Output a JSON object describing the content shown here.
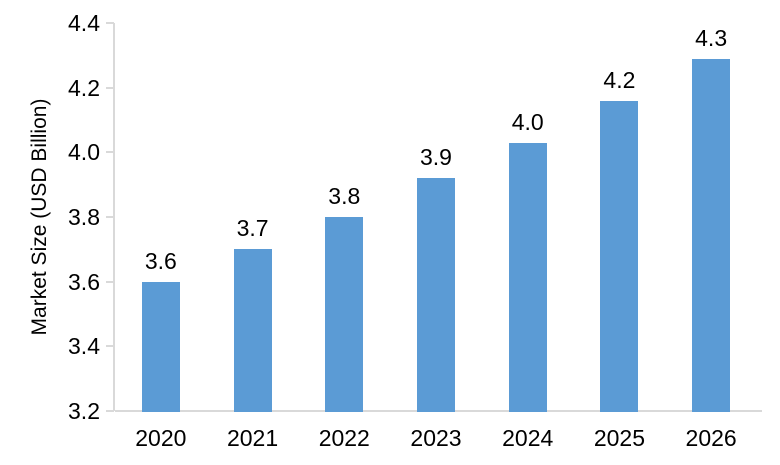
{
  "chart_data": {
    "type": "bar",
    "title": "",
    "xlabel": "",
    "ylabel": "Market Size (USD Billion)",
    "categories": [
      "2020",
      "2021",
      "2022",
      "2023",
      "2024",
      "2025",
      "2026"
    ],
    "values": [
      3.6,
      3.7,
      3.8,
      3.9,
      4.0,
      4.2,
      4.3
    ],
    "value_labels": [
      "3.6",
      "3.7",
      "3.8",
      "3.9",
      "4.0",
      "4.2",
      "4.3"
    ],
    "bar_top_values": [
      3.6,
      3.7,
      3.8,
      3.92,
      4.03,
      4.16,
      4.29
    ],
    "ylim": [
      3.2,
      4.4
    ],
    "ytick_labels": [
      "3.2",
      "3.4",
      "3.6",
      "3.8",
      "4.0",
      "4.2",
      "4.4"
    ],
    "ytick_values": [
      3.2,
      3.4,
      3.6,
      3.8,
      4.0,
      4.2,
      4.4
    ],
    "grid": false,
    "legend": null,
    "colors": {
      "bar": "#5b9bd5",
      "axis": "#d9d9d9",
      "text": "#000000",
      "background": "#ffffff"
    }
  }
}
